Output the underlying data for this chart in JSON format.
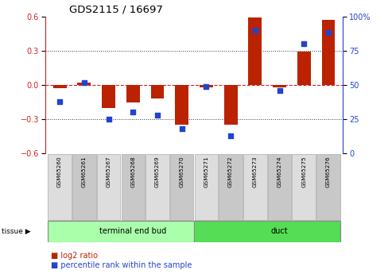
{
  "title": "GDS2115 / 16697",
  "samples": [
    "GSM65260",
    "GSM65261",
    "GSM65267",
    "GSM65268",
    "GSM65269",
    "GSM65270",
    "GSM65271",
    "GSM65272",
    "GSM65273",
    "GSM65274",
    "GSM65275",
    "GSM65276"
  ],
  "log2_ratio": [
    -0.03,
    0.02,
    -0.2,
    -0.15,
    -0.12,
    -0.35,
    -0.02,
    -0.35,
    0.59,
    -0.02,
    0.29,
    0.57
  ],
  "percentile_rank": [
    38,
    52,
    25,
    30,
    28,
    18,
    49,
    13,
    90,
    46,
    80,
    88
  ],
  "groups": [
    {
      "label": "terminal end bud",
      "start": 0,
      "end": 6,
      "color": "#aaffaa"
    },
    {
      "label": "duct",
      "start": 6,
      "end": 12,
      "color": "#55dd55"
    }
  ],
  "tissue_label": "tissue",
  "ylim_left": [
    -0.6,
    0.6
  ],
  "ylim_right": [
    0,
    100
  ],
  "yticks_left": [
    -0.6,
    -0.3,
    0.0,
    0.3,
    0.6
  ],
  "yticks_right": [
    0,
    25,
    50,
    75,
    100
  ],
  "bar_color": "#bb2200",
  "dot_color": "#2244cc",
  "zero_line_color": "#cc2222",
  "grid_color": "#333333",
  "bg_color": "#ffffff",
  "plot_bg": "#ffffff",
  "legend_red_label": "log2 ratio",
  "legend_blue_label": "percentile rank within the sample",
  "bar_width": 0.55
}
